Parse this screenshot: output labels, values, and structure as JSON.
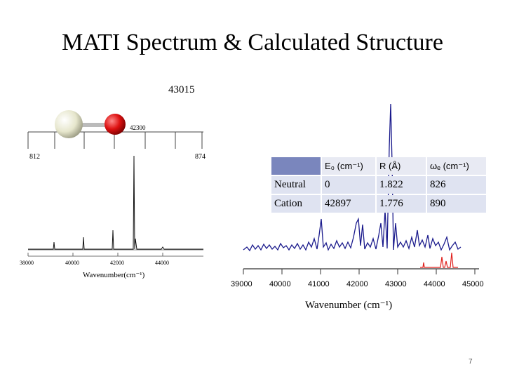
{
  "slide": {
    "title": "MATI Spectrum & Calculated Structure",
    "subtitle": "43015",
    "page_number": "7"
  },
  "left_plot": {
    "upper_label_left": "812",
    "upper_label_mid": "42300",
    "upper_label_right": "874",
    "tick_labels": [
      "38000",
      "40000",
      "42000",
      "44000"
    ],
    "xlabel": "Wavenumber(cm⁻¹)"
  },
  "right_plot": {
    "tick_labels": [
      "39000",
      "40000",
      "41000",
      "42000",
      "43000",
      "44000",
      "45000"
    ],
    "xlabel": "Wavenumber (cm⁻¹)",
    "colors": {
      "main": "#1a1a8c",
      "secondary": "#e0201c"
    }
  },
  "molecule": {
    "atom1_color": "#efefd8",
    "atom2_color": "#dd1111"
  },
  "table": {
    "headers": [
      "",
      "E₀ (cm⁻¹)",
      "R (Å)",
      "ωₑ (cm⁻¹)"
    ],
    "rows": [
      [
        "Neutral",
        "0",
        "1.822",
        "826"
      ],
      [
        "Cation",
        "42897",
        "1.776",
        "890"
      ]
    ]
  }
}
